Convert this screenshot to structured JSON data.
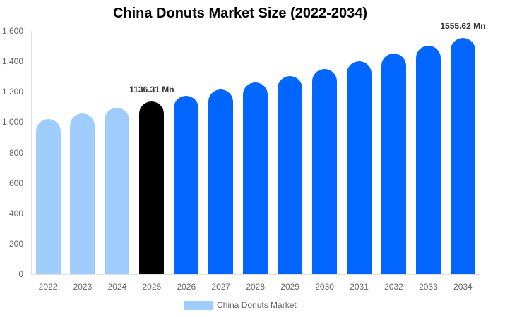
{
  "chart_data": {
    "type": "bar",
    "title": "China Donuts Market Size (2022-2034)",
    "xlabel": "",
    "ylabel": "",
    "categories": [
      "2022",
      "2023",
      "2024",
      "2025",
      "2026",
      "2027",
      "2028",
      "2029",
      "2030",
      "2031",
      "2032",
      "2033",
      "2034"
    ],
    "series": [
      {
        "name": "China Donuts Market",
        "values": [
          1020,
          1057,
          1095,
          1136.31,
          1174,
          1215,
          1262,
          1303,
          1350,
          1401,
          1452,
          1503,
          1555.62
        ]
      }
    ],
    "ylim": [
      0,
      1600
    ],
    "yticks": [
      0,
      200,
      400,
      600,
      800,
      1000,
      1200,
      1400,
      1600
    ],
    "ytick_labels": [
      "0",
      "200",
      "400",
      "600",
      "800",
      "1,000",
      "1,200",
      "1,400",
      "1,600"
    ],
    "grid": false,
    "legend_position": "bottom",
    "annotations": [
      {
        "category": "2025",
        "text": "1136.31 Mn"
      },
      {
        "category": "2034",
        "text": "1555.62 Mn"
      }
    ],
    "bar_colors": {
      "historical": "#9fcdfd",
      "current": "#000000",
      "forecast": "#0066ff"
    },
    "bar_color_per_category": [
      "#9fcdfd",
      "#9fcdfd",
      "#9fcdfd",
      "#000000",
      "#0066ff",
      "#0066ff",
      "#0066ff",
      "#0066ff",
      "#0066ff",
      "#0066ff",
      "#0066ff",
      "#0066ff",
      "#0066ff"
    ]
  },
  "legend": {
    "label": "China Donuts Market",
    "color": "#9fcdfd"
  }
}
